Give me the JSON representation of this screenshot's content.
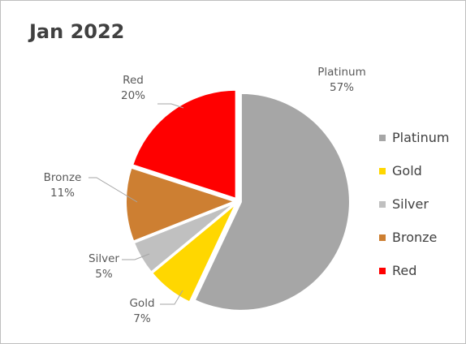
{
  "chart_data": {
    "type": "pie",
    "title": "Jan 2022",
    "categories": [
      "Platinum",
      "Gold",
      "Silver",
      "Bronze",
      "Red"
    ],
    "values": [
      57,
      7,
      5,
      11,
      20
    ],
    "value_labels": [
      "57%",
      "7%",
      "5%",
      "11%",
      "20%"
    ],
    "colors": [
      "#a6a6a6",
      "#ffd700",
      "#c0c0c0",
      "#cd7f32",
      "#ff0000"
    ],
    "legend_position": "right",
    "start_angle_deg": 0,
    "direction": "clockwise",
    "exploded": true
  }
}
